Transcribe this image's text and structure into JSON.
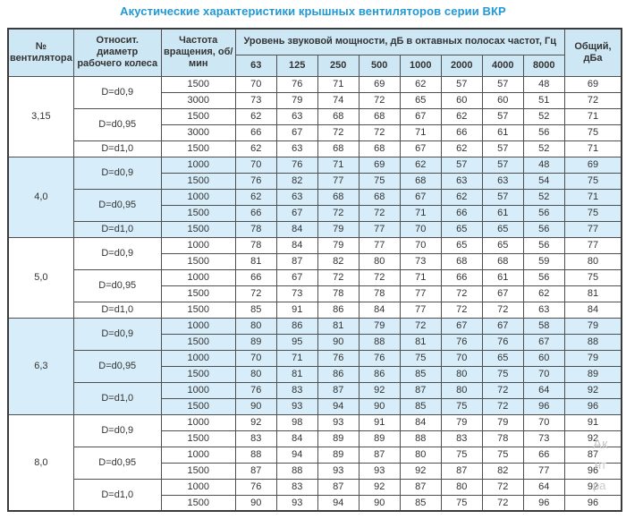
{
  "title": "Акустические характеристики крышных вентиляторов серии ВКР",
  "colors": {
    "title": "#2199d4",
    "header_bg": "#cde7f5",
    "band_bg": "#d7edf9",
    "border": "#4f4f4f",
    "text": "#333333"
  },
  "table": {
    "headers": {
      "fan": "№ вентилятора",
      "diameter": "Относит. диаметр рабочего колеса",
      "rpm": "Частота вращения, об/мин",
      "spl": "Уровень звуковой мощности, дБ в октавных полосах частот, Гц",
      "freqs": [
        "63",
        "125",
        "250",
        "500",
        "1000",
        "2000",
        "4000",
        "8000"
      ],
      "total": "Общий, дБа"
    },
    "sections": [
      {
        "fan": "3,15",
        "shaded": false,
        "groups": [
          {
            "diameter": "D=d0,9",
            "rows": [
              {
                "rpm": "1500",
                "values": [
                  70,
                  76,
                  71,
                  69,
                  62,
                  57,
                  57,
                  48
                ],
                "total": 69
              },
              {
                "rpm": "3000",
                "values": [
                  73,
                  79,
                  74,
                  72,
                  65,
                  60,
                  60,
                  51
                ],
                "total": 72
              }
            ]
          },
          {
            "diameter": "D=d0,95",
            "rows": [
              {
                "rpm": "1500",
                "values": [
                  62,
                  63,
                  68,
                  68,
                  67,
                  62,
                  57,
                  52
                ],
                "total": 71
              },
              {
                "rpm": "3000",
                "values": [
                  66,
                  67,
                  72,
                  72,
                  71,
                  66,
                  61,
                  56
                ],
                "total": 75
              }
            ]
          },
          {
            "diameter": "D=d1,0",
            "rows": [
              {
                "rpm": "1500",
                "values": [
                  62,
                  63,
                  68,
                  68,
                  67,
                  62,
                  57,
                  52
                ],
                "total": 71
              }
            ]
          }
        ]
      },
      {
        "fan": "4,0",
        "shaded": true,
        "groups": [
          {
            "diameter": "D=d0,9",
            "rows": [
              {
                "rpm": "1000",
                "values": [
                  70,
                  76,
                  71,
                  69,
                  62,
                  57,
                  57,
                  48
                ],
                "total": 69
              },
              {
                "rpm": "1500",
                "values": [
                  76,
                  82,
                  77,
                  75,
                  68,
                  63,
                  63,
                  54
                ],
                "total": 75
              }
            ]
          },
          {
            "diameter": "D=d0,95",
            "rows": [
              {
                "rpm": "1000",
                "values": [
                  62,
                  63,
                  68,
                  68,
                  67,
                  62,
                  57,
                  52
                ],
                "total": 71
              },
              {
                "rpm": "1500",
                "values": [
                  66,
                  67,
                  72,
                  72,
                  71,
                  66,
                  61,
                  56
                ],
                "total": 75
              }
            ]
          },
          {
            "diameter": "D=d1,0",
            "rows": [
              {
                "rpm": "1500",
                "values": [
                  78,
                  84,
                  79,
                  77,
                  70,
                  65,
                  65,
                  56
                ],
                "total": 77
              }
            ]
          }
        ]
      },
      {
        "fan": "5,0",
        "shaded": false,
        "groups": [
          {
            "diameter": "D=d0,9",
            "rows": [
              {
                "rpm": "1000",
                "values": [
                  78,
                  84,
                  79,
                  77,
                  70,
                  65,
                  65,
                  56
                ],
                "total": 77
              },
              {
                "rpm": "1500",
                "values": [
                  81,
                  87,
                  82,
                  80,
                  73,
                  68,
                  68,
                  59
                ],
                "total": 80
              }
            ]
          },
          {
            "diameter": "D=d0,95",
            "rows": [
              {
                "rpm": "1000",
                "values": [
                  66,
                  67,
                  72,
                  72,
                  71,
                  66,
                  61,
                  56
                ],
                "total": 75
              },
              {
                "rpm": "1500",
                "values": [
                  72,
                  73,
                  78,
                  78,
                  77,
                  72,
                  67,
                  62
                ],
                "total": 81
              }
            ]
          },
          {
            "diameter": "D=d1,0",
            "rows": [
              {
                "rpm": "1500",
                "values": [
                  85,
                  91,
                  86,
                  84,
                  77,
                  72,
                  72,
                  63
                ],
                "total": 84
              }
            ]
          }
        ]
      },
      {
        "fan": "6,3",
        "shaded": true,
        "groups": [
          {
            "diameter": "D=d0,9",
            "rows": [
              {
                "rpm": "1000",
                "values": [
                  80,
                  86,
                  81,
                  79,
                  72,
                  67,
                  67,
                  58
                ],
                "total": 79
              },
              {
                "rpm": "1500",
                "values": [
                  89,
                  95,
                  90,
                  88,
                  81,
                  76,
                  76,
                  67
                ],
                "total": 88
              }
            ]
          },
          {
            "diameter": "D=d0,95",
            "rows": [
              {
                "rpm": "1000",
                "values": [
                  70,
                  71,
                  76,
                  76,
                  75,
                  70,
                  65,
                  60
                ],
                "total": 79
              },
              {
                "rpm": "1500",
                "values": [
                  80,
                  81,
                  86,
                  86,
                  85,
                  80,
                  75,
                  70
                ],
                "total": 89
              }
            ]
          },
          {
            "diameter": "D=d1,0",
            "rows": [
              {
                "rpm": "1000",
                "values": [
                  76,
                  83,
                  87,
                  92,
                  87,
                  80,
                  72,
                  64
                ],
                "total": 92
              },
              {
                "rpm": "1500",
                "values": [
                  90,
                  93,
                  94,
                  90,
                  85,
                  75,
                  72,
                  96
                ],
                "total": 96
              }
            ]
          }
        ]
      },
      {
        "fan": "8,0",
        "shaded": false,
        "groups": [
          {
            "diameter": "D=d0,9",
            "rows": [
              {
                "rpm": "1000",
                "values": [
                  92,
                  98,
                  93,
                  91,
                  84,
                  79,
                  79,
                  70
                ],
                "total": 91
              },
              {
                "rpm": "1500",
                "values": [
                  83,
                  84,
                  89,
                  89,
                  88,
                  83,
                  78,
                  73
                ],
                "total": 92
              }
            ]
          },
          {
            "diameter": "D=d0,95",
            "rows": [
              {
                "rpm": "1000",
                "values": [
                  88,
                  94,
                  89,
                  87,
                  80,
                  75,
                  75,
                  66
                ],
                "total": 87
              },
              {
                "rpm": "1500",
                "values": [
                  87,
                  88,
                  93,
                  93,
                  92,
                  87,
                  82,
                  77
                ],
                "total": 96
              }
            ]
          },
          {
            "diameter": "D=d1,0",
            "rows": [
              {
                "rpm": "1000",
                "values": [
                  76,
                  83,
                  87,
                  92,
                  87,
                  80,
                  72,
                  64
                ],
                "total": 92
              },
              {
                "rpm": "1500",
                "values": [
                  90,
                  93,
                  94,
                  90,
                  85,
                  75,
                  72,
                  96
                ],
                "total": 96
              }
            ]
          }
        ]
      }
    ]
  },
  "watermark": {
    "line1": "Ак",
    "line2": "нт",
    "line3": "ра"
  }
}
